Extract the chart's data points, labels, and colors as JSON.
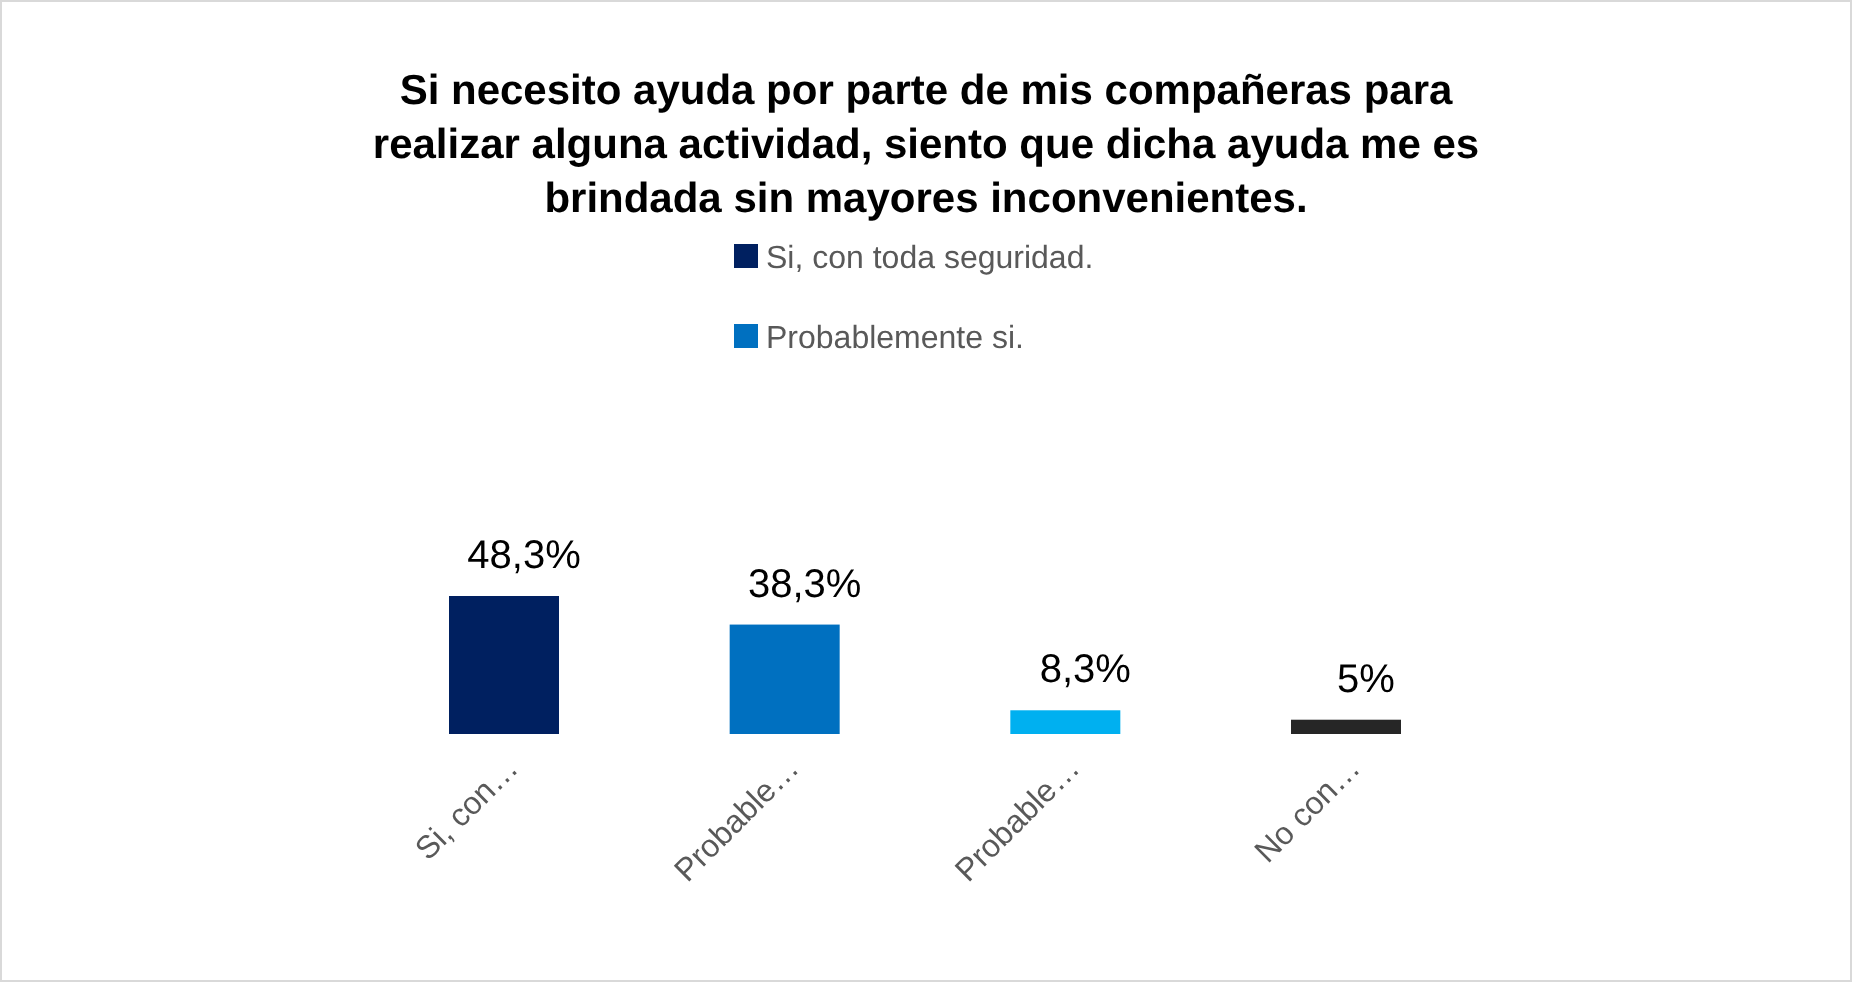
{
  "chart_data": {
    "type": "bar",
    "title": "Si necesito ayuda por parte de mis compañeras para realizar alguna actividad, siento que dicha ayuda me es brindada sin mayores inconvenientes.",
    "categories": [
      "Si, con…",
      "Probable…",
      "Probable…",
      "No con…"
    ],
    "series": [
      {
        "name": "Si, con toda seguridad.",
        "color": "#002060",
        "values": [
          48.3,
          null,
          null,
          null
        ],
        "value_labels": [
          "48,3%",
          null,
          null,
          null
        ]
      },
      {
        "name": "Probablemente si.",
        "color": "#0070c0",
        "values": [
          null,
          38.3,
          null,
          null
        ],
        "value_labels": [
          null,
          "38,3%",
          null,
          null
        ]
      },
      {
        "color": "#00b0f0",
        "values": [
          null,
          null,
          8.3,
          null
        ],
        "value_labels": [
          null,
          null,
          "8,3%",
          null
        ]
      },
      {
        "color": "#262626",
        "values": [
          null,
          null,
          null,
          5
        ],
        "value_labels": [
          null,
          null,
          null,
          "5%"
        ]
      }
    ],
    "legend": "top",
    "grid": false
  }
}
